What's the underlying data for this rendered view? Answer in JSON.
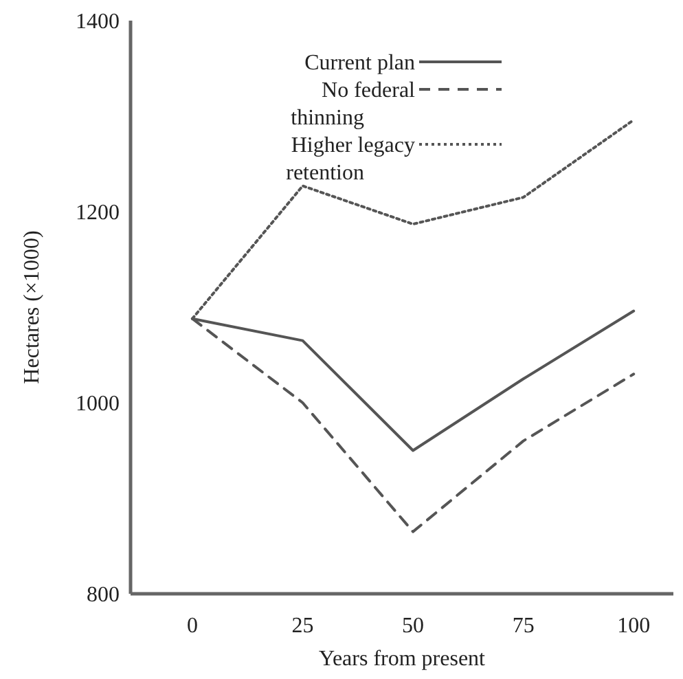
{
  "chart_data": {
    "type": "line",
    "xlabel": "Years from present",
    "ylabel": "Hectares (×1000)",
    "x": [
      0,
      25,
      50,
      75,
      100
    ],
    "xlim": [
      -14,
      109
    ],
    "ylim": [
      800,
      1400
    ],
    "xticks": [
      0,
      25,
      50,
      75,
      100
    ],
    "yticks": [
      800,
      1000,
      1200,
      1400
    ],
    "grid": false,
    "legend": "top",
    "marker": "none",
    "series": [
      {
        "name": "Current plan",
        "color": "#555555",
        "line_style": "solid",
        "values": [
          1088,
          1065,
          950,
          1025,
          1096
        ]
      },
      {
        "name": "No federal thinning",
        "color": "#555555",
        "line_style": "dashed",
        "values": [
          1088,
          1000,
          865,
          960,
          1030
        ]
      },
      {
        "name": "Higher legacy retention",
        "color": "#555555",
        "line_style": "dotted",
        "values": [
          1088,
          1227,
          1187,
          1215,
          1296
        ]
      }
    ]
  }
}
